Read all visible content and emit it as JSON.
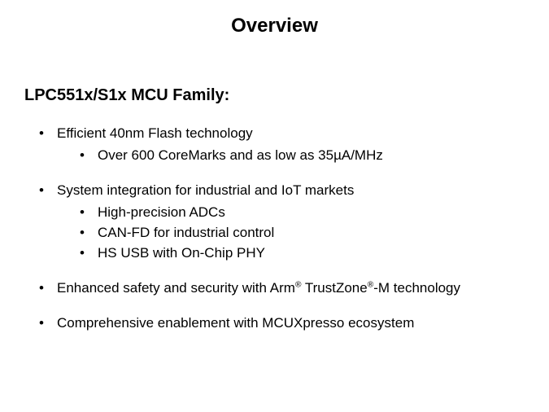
{
  "title": "Overview",
  "heading": "LPC551x/S1x MCU Family:",
  "bullets": {
    "b1": {
      "text": "Efficient 40nm Flash technology",
      "sub": {
        "s1": "Over 600 CoreMarks and as low as 35µA/MHz"
      }
    },
    "b2": {
      "text": "System integration for industrial and IoT markets",
      "sub": {
        "s1": "High-precision ADCs",
        "s2": "CAN-FD for industrial control",
        "s3": "HS USB with On-Chip PHY"
      }
    },
    "b3": {
      "pre": "Enhanced safety and security with Arm",
      "mid": " TrustZone",
      "post": "-M technology",
      "reg": "®"
    },
    "b4": {
      "text": "Comprehensive enablement with MCUXpresso ecosystem"
    }
  },
  "colors": {
    "background": "#ffffff",
    "text": "#000000"
  },
  "fonts": {
    "title_size": 24,
    "heading_size": 20,
    "body_size": 17
  }
}
